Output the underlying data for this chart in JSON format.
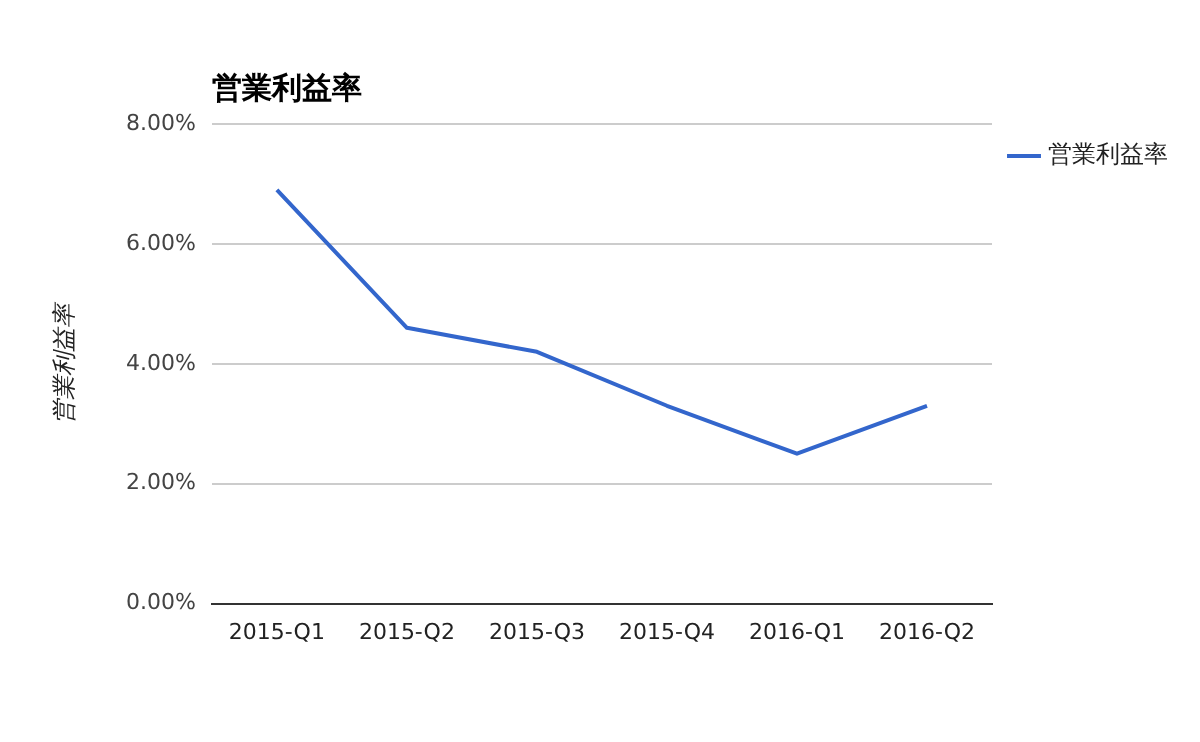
{
  "chart_data": {
    "type": "line",
    "title": "営業利益率",
    "ylabel": "営業利益率",
    "categories": [
      "2015-Q1",
      "2015-Q2",
      "2015-Q3",
      "2015-Q4",
      "2016-Q1",
      "2016-Q2"
    ],
    "series": [
      {
        "name": "営業利益率",
        "color": "#3366cc",
        "values": [
          6.9,
          4.6,
          4.2,
          3.3,
          2.5,
          3.3
        ]
      }
    ],
    "ylim": [
      0,
      8
    ],
    "yticks": [
      {
        "value": 0,
        "label": "0.00%"
      },
      {
        "value": 2,
        "label": "2.00%"
      },
      {
        "value": 4,
        "label": "4.00%"
      },
      {
        "value": 6,
        "label": "6.00%"
      },
      {
        "value": 8,
        "label": "8.00%"
      }
    ],
    "grid": "y",
    "legend": "top right",
    "marker": "none",
    "line_style": "solid"
  }
}
